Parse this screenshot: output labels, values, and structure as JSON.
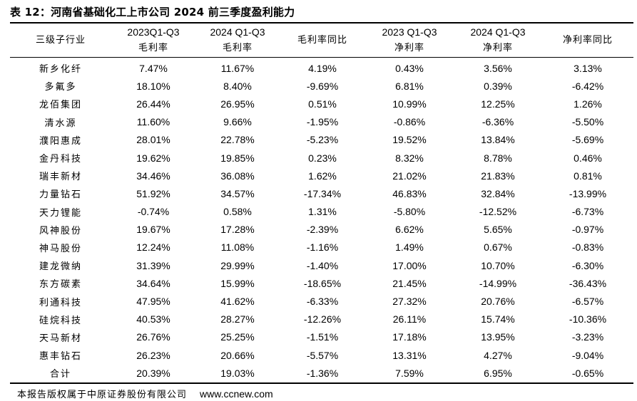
{
  "title": "表 12：河南省基础化工上市公司 2024 前三季度盈利能力",
  "headers": [
    {
      "line1": "三级子行业",
      "line2": ""
    },
    {
      "line1": "2023Q1-Q3",
      "line2": "毛利率"
    },
    {
      "line1": "2024 Q1-Q3",
      "line2": "毛利率"
    },
    {
      "line1": "毛利率同比",
      "line2": ""
    },
    {
      "line1": "2023 Q1-Q3",
      "line2": "净利率"
    },
    {
      "line1": "2024 Q1-Q3",
      "line2": "净利率"
    },
    {
      "line1": "净利率同比",
      "line2": ""
    }
  ],
  "rows": [
    [
      "新乡化纤",
      "7.47%",
      "11.67%",
      "4.19%",
      "0.43%",
      "3.56%",
      "3.13%"
    ],
    [
      "多氟多",
      "18.10%",
      "8.40%",
      "-9.69%",
      "6.81%",
      "0.39%",
      "-6.42%"
    ],
    [
      "龙佰集团",
      "26.44%",
      "26.95%",
      "0.51%",
      "10.99%",
      "12.25%",
      "1.26%"
    ],
    [
      "清水源",
      "11.60%",
      "9.66%",
      "-1.95%",
      "-0.86%",
      "-6.36%",
      "-5.50%"
    ],
    [
      "濮阳惠成",
      "28.01%",
      "22.78%",
      "-5.23%",
      "19.52%",
      "13.84%",
      "-5.69%"
    ],
    [
      "金丹科技",
      "19.62%",
      "19.85%",
      "0.23%",
      "8.32%",
      "8.78%",
      "0.46%"
    ],
    [
      "瑞丰新材",
      "34.46%",
      "36.08%",
      "1.62%",
      "21.02%",
      "21.83%",
      "0.81%"
    ],
    [
      "力量钻石",
      "51.92%",
      "34.57%",
      "-17.34%",
      "46.83%",
      "32.84%",
      "-13.99%"
    ],
    [
      "天力锂能",
      "-0.74%",
      "0.58%",
      "1.31%",
      "-5.80%",
      "-12.52%",
      "-6.73%"
    ],
    [
      "风神股份",
      "19.67%",
      "17.28%",
      "-2.39%",
      "6.62%",
      "5.65%",
      "-0.97%"
    ],
    [
      "神马股份",
      "12.24%",
      "11.08%",
      "-1.16%",
      "1.49%",
      "0.67%",
      "-0.83%"
    ],
    [
      "建龙微纳",
      "31.39%",
      "29.99%",
      "-1.40%",
      "17.00%",
      "10.70%",
      "-6.30%"
    ],
    [
      "东方碳素",
      "34.64%",
      "15.99%",
      "-18.65%",
      "21.45%",
      "-14.99%",
      "-36.43%"
    ],
    [
      "利通科技",
      "47.95%",
      "41.62%",
      "-6.33%",
      "27.32%",
      "20.76%",
      "-6.57%"
    ],
    [
      "硅烷科技",
      "40.53%",
      "28.27%",
      "-12.26%",
      "26.11%",
      "15.74%",
      "-10.36%"
    ],
    [
      "天马新材",
      "26.76%",
      "25.25%",
      "-1.51%",
      "17.18%",
      "13.95%",
      "-3.23%"
    ],
    [
      "惠丰钻石",
      "26.23%",
      "20.66%",
      "-5.57%",
      "13.31%",
      "4.27%",
      "-9.04%"
    ],
    [
      "合计",
      "20.39%",
      "19.03%",
      "-1.36%",
      "7.59%",
      "6.95%",
      "-0.65%"
    ]
  ],
  "footer": {
    "source": "本报告版权属于中原证券股份有限公司",
    "url": "www.ccnew.com"
  }
}
